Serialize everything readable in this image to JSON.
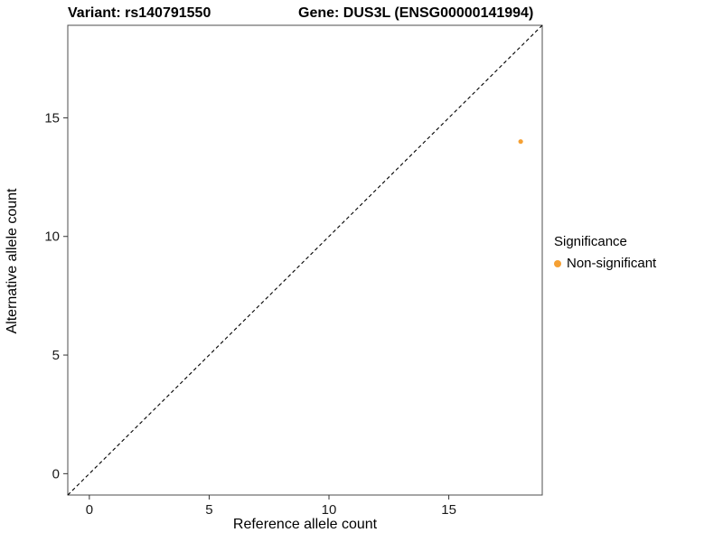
{
  "chart_data": {
    "type": "scatter",
    "title_left": "Variant: rs140791550",
    "title_right": "Gene: DUS3L (ENSG00000141994)",
    "xlabel": "Reference allele count",
    "ylabel": "Alternative allele count",
    "xlim": [
      -0.9,
      18.9
    ],
    "ylim": [
      -0.9,
      18.9
    ],
    "xticks": [
      0,
      5,
      10,
      15
    ],
    "yticks": [
      0,
      5,
      10,
      15
    ],
    "grid": false,
    "identity_line": {
      "style": "dashed",
      "from": [
        -0.9,
        -0.9
      ],
      "to": [
        18.9,
        18.9
      ],
      "color": "#000000"
    },
    "series": [
      {
        "name": "Non-significant",
        "color": "#F5A033",
        "points": [
          [
            18,
            14
          ]
        ]
      }
    ],
    "legend": {
      "title": "Significance",
      "position": "right",
      "entries": [
        {
          "label": "Non-significant",
          "color": "#F5A033"
        }
      ]
    }
  },
  "colors": {
    "point": "#F5A033",
    "panel_border": "#4d4d4d",
    "tick": "#333333",
    "tick_label": "#1a1a1a"
  }
}
